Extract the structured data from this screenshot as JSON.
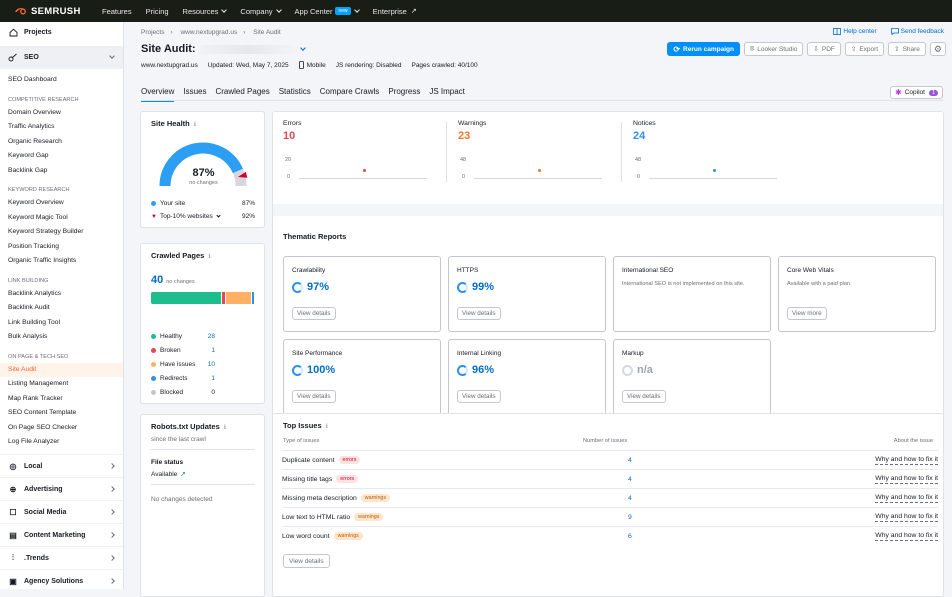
{
  "topbar": {
    "logo": "SEMRUSH",
    "nav": [
      {
        "label": "Features",
        "chevron": false,
        "badge": ""
      },
      {
        "label": "Pricing",
        "chevron": false,
        "badge": ""
      },
      {
        "label": "Resources",
        "chevron": true,
        "badge": ""
      },
      {
        "label": "Company",
        "chevron": true,
        "badge": ""
      },
      {
        "label": "App Center",
        "chevron": true,
        "badge": "new"
      },
      {
        "label": "Enterprise",
        "chevron": false,
        "badge": ""
      }
    ]
  },
  "sidebar": {
    "projects": "Projects",
    "seo": "SEO",
    "seo_dashboard": "SEO Dashboard",
    "sections": [
      {
        "title": "Competitive Research",
        "items": [
          "Domain Overview",
          "Traffic Analytics",
          "Organic Research",
          "Keyword Gap",
          "Backlink Gap"
        ]
      },
      {
        "title": "Keyword Research",
        "items": [
          "Keyword Overview",
          "Keyword Magic Tool",
          "Keyword Strategy Builder",
          "Position Tracking",
          "Organic Traffic Insights"
        ]
      },
      {
        "title": "Link Building",
        "items": [
          "Backlink Analytics",
          "Backlink Audit",
          "Link Building Tool",
          "Bulk Analysis"
        ]
      },
      {
        "title": "On Page & Tech SEO",
        "items": [
          "Site Audit",
          "Listing Management",
          "Map Rank Tracker",
          "SEO Content Template",
          "On Page SEO Checker",
          "Log File Analyzer"
        ]
      }
    ],
    "active_item": "Site Audit",
    "categories": [
      "Local",
      "Advertising",
      "Social Media",
      "Content Marketing",
      ".Trends",
      "Agency Solutions"
    ]
  },
  "header": {
    "breadcrumb": [
      "Projects",
      "www.nextupgrad.us",
      "Site Audit"
    ],
    "title": "Site Audit:",
    "domain": "www.nextupgrad.us",
    "updated": "Updated: Wed, May 7, 2025",
    "device": "Mobile",
    "js_rendering": "JS rendering: Disabled",
    "pages_crawled": "Pages crawled: 40/100",
    "help_center": "Help center",
    "send_feedback": "Send feedback",
    "rerun": "Rerun campaign",
    "looker": "Looker Studio",
    "pdf": "PDF",
    "export": "Export",
    "share": "Share",
    "copilot": "Copilot",
    "copilot_count": "1"
  },
  "tabs": [
    "Overview",
    "Issues",
    "Crawled Pages",
    "Statistics",
    "Compare Crawls",
    "Progress",
    "JS Impact"
  ],
  "active_tab": "Overview",
  "site_health": {
    "title": "Site Health",
    "score": "87%",
    "score_value": 87,
    "top10_value": 92,
    "change": "no changes",
    "your_site_label": "Your site",
    "your_site_value": "87%",
    "top10_label": "Top-10% websites",
    "top10_display": "92%",
    "color_your": "#2c9ff5",
    "color_top": "#d1002f"
  },
  "metrics": [
    {
      "name": "Errors",
      "value": "10",
      "color": "#e5484d",
      "ymax": "20",
      "ymin": "0"
    },
    {
      "name": "Warnings",
      "value": "23",
      "color": "#f0772e",
      "ymax": "48",
      "ymin": "0"
    },
    {
      "name": "Notices",
      "value": "24",
      "color": "#2c90ef",
      "ymax": "48",
      "ymin": "0"
    }
  ],
  "crawled_pages": {
    "title": "Crawled Pages",
    "total": "40",
    "change": "no changes",
    "items": [
      {
        "label": "Healthy",
        "value": 28,
        "color": "#1fbd8d"
      },
      {
        "label": "Broken",
        "value": 1,
        "color": "#e5484d"
      },
      {
        "label": "Have issues",
        "value": 10,
        "color": "#ffb064"
      },
      {
        "label": "Redirects",
        "value": 1,
        "color": "#2c90ef"
      },
      {
        "label": "Blocked",
        "value": 0,
        "color": "#c4c7cf"
      }
    ]
  },
  "robots": {
    "title": "Robots.txt Updates",
    "since": "since the last crawl",
    "file_status_label": "File status",
    "file_status_value": "Available",
    "no_changes": "No changes detected"
  },
  "thematic": {
    "title": "Thematic Reports",
    "cards": [
      {
        "name": "Crawlability",
        "value": "97%",
        "button": "View details",
        "desc": ""
      },
      {
        "name": "HTTPS",
        "value": "99%",
        "button": "View details",
        "desc": ""
      },
      {
        "name": "International SEO",
        "value": "",
        "button": "",
        "desc": "International SEO is not implemented on this site."
      },
      {
        "name": "Core Web Vitals",
        "value": "",
        "button": "View more",
        "desc": "Available with a paid plan"
      },
      {
        "name": "Site Performance",
        "value": "100%",
        "button": "View details",
        "desc": ""
      },
      {
        "name": "Internal Linking",
        "value": "96%",
        "button": "View details",
        "desc": ""
      },
      {
        "name": "Markup",
        "value": "n/a",
        "button": "View details",
        "desc": ""
      }
    ]
  },
  "top_issues": {
    "title": "Top Issues",
    "col_type": "Type of issues",
    "col_number": "Number of issues",
    "col_about": "About the issue",
    "rows": [
      {
        "name": "Duplicate content",
        "badge": "errors",
        "count": "4",
        "fix": "Why and how to fix it"
      },
      {
        "name": "Missing title tags",
        "badge": "errors",
        "count": "4",
        "fix": "Why and how to fix it"
      },
      {
        "name": "Missing meta description",
        "badge": "warnings",
        "count": "4",
        "fix": "Why and how to fix it"
      },
      {
        "name": "Low text to HTML ratio",
        "badge": "warnings",
        "count": "9",
        "fix": "Why and how to fix it"
      },
      {
        "name": "Low word count",
        "badge": "warnings",
        "count": "6",
        "fix": "Why and how to fix it"
      }
    ],
    "view_details": "View details"
  }
}
